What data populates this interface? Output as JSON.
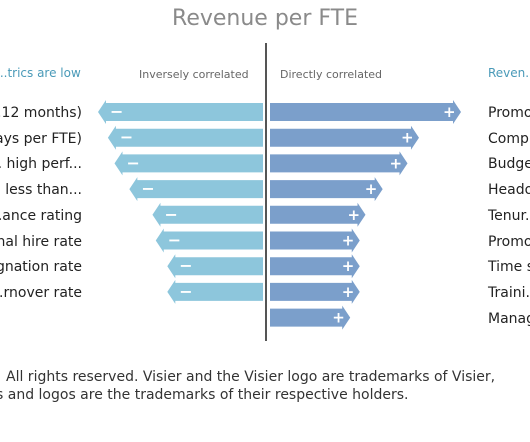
{
  "chart_data": {
    "type": "bar",
    "title": "Revenue per FTE",
    "left_header": "...trics are low",
    "right_header": "Reven...",
    "inverse_label": "Inversely correlated",
    "direct_label": "Directly correlated",
    "inverse": {
      "categories": [
        "...12 months)",
        "...ays per FTE)",
        "... high perf...",
        "... less than...",
        "...ance rating",
        "...nal hire rate",
        "...gnation rate",
        "...rnover rate"
      ],
      "values": [
        -1.0,
        -0.94,
        -0.9,
        -0.81,
        -0.67,
        -0.65,
        -0.58,
        -0.58
      ]
    },
    "direct": {
      "categories": [
        "Promo...",
        "Comp...",
        "Budge...",
        "Heado...",
        "Tenur...",
        "Promo...",
        "Time s...",
        "Traini...",
        "Manag..."
      ],
      "values": [
        1.0,
        0.78,
        0.72,
        0.59,
        0.5,
        0.47,
        0.47,
        0.47,
        0.42
      ]
    },
    "colors": {
      "inverse": "#8dc6dc",
      "direct": "#7b9fcb"
    }
  },
  "footer": {
    "line1": "All rights reserved. Visier and the Visier logo are trademarks of Visier,",
    "line2": "s and logos are the trademarks of their respective holders."
  }
}
